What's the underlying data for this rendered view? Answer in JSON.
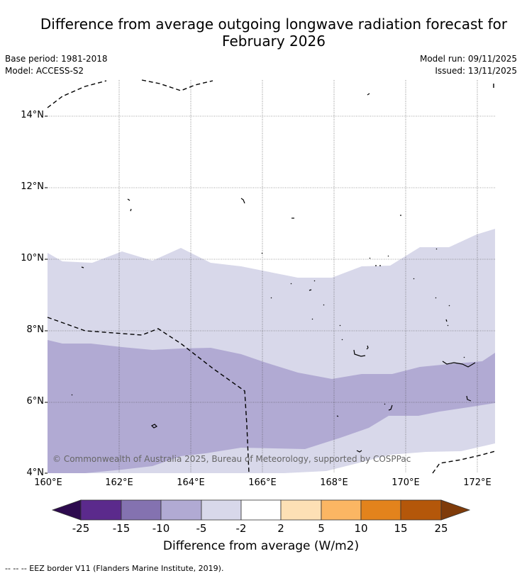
{
  "title_line1": "Difference from average outgoing longwave radiation forecast for",
  "title_line2": "February 2026",
  "base_period": "Base period: 1981-2018",
  "model": "Model: ACCESS-S2",
  "model_run": "Model run: 09/11/2025",
  "issued": "Issued: 13/11/2025",
  "y_ticks": [
    "14°N",
    "12°N",
    "10°N",
    "8°N",
    "6°N",
    "4°N"
  ],
  "x_ticks": [
    "160°E",
    "162°E",
    "164°E",
    "166°E",
    "168°E",
    "170°E",
    "172°E"
  ],
  "copyright": "© Commonwealth of Australia 2025, Bureau of Meteorology, supported by COSPPac",
  "colorbar": {
    "labels": [
      "-25",
      "-15",
      "-10",
      "-5",
      "-2",
      "2",
      "5",
      "10",
      "15",
      "25"
    ],
    "colors": [
      "#2d0a4e",
      "#5b2a8c",
      "#8472b0",
      "#b1aad3",
      "#d8d8ea",
      "#ffffff",
      "#fde0b5",
      "#fbb663",
      "#e3831c",
      "#b4570a",
      "#7f3b0a"
    ],
    "title": "Difference from average (W/m2)"
  },
  "footnote": "--  --  -- EEZ border V11 (Flanders Marine Institute, 2019)."
}
